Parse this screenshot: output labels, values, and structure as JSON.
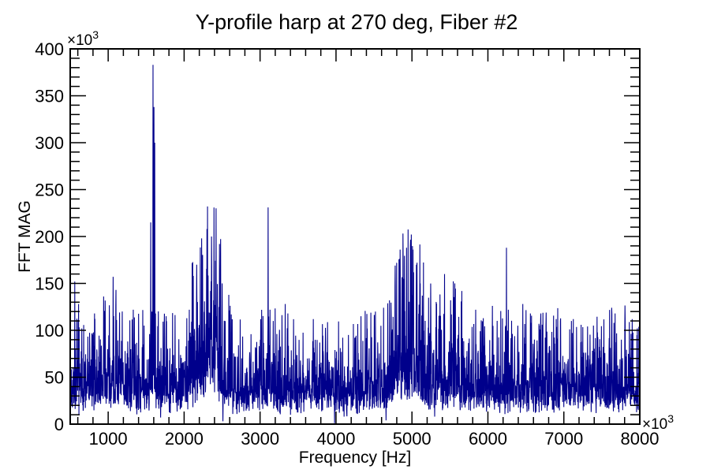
{
  "window": {
    "background_color": "#ffffff",
    "foreground_color": "#000000"
  },
  "chart_data": {
    "type": "line",
    "title": "Y-profile harp at 270 deg, Fiber #2",
    "xlabel": "Frequency [Hz]",
    "ylabel": "FFT MAG",
    "x_axis_multiplier": {
      "base": "×10",
      "exp": "3"
    },
    "y_axis_multiplier": {
      "base": "×10",
      "exp": "3"
    },
    "xlim": [
      500,
      8000
    ],
    "ylim": [
      0,
      400
    ],
    "x_major_ticks": [
      1000,
      2000,
      3000,
      4000,
      5000,
      6000,
      7000,
      8000
    ],
    "x_minor_step": 200,
    "y_major_ticks": [
      0,
      50,
      100,
      150,
      200,
      250,
      300,
      350,
      400
    ],
    "y_minor_step": 10,
    "grid": false,
    "legend": null,
    "line_color": "#00008b",
    "frame_color": "#000000",
    "noise": {
      "seed": 7,
      "points": 3000,
      "floor": 16,
      "base_envelope": 42,
      "shape_a": 0.22,
      "shape_b": 0.62,
      "r_cap": 3.6,
      "clamp_max": 232
    },
    "humps": [
      {
        "center": 2330,
        "sigma": 170,
        "amplitude": 60
      },
      {
        "center": 4950,
        "sigma": 190,
        "amplitude": 38
      },
      {
        "center": 5500,
        "sigma": 120,
        "amplitude": 16
      },
      {
        "center": 1050,
        "sigma": 160,
        "amplitude": 8
      },
      {
        "center": 7850,
        "sigma": 150,
        "amplitude": 6
      },
      {
        "center": 2640,
        "sigma": 90,
        "amplitude": -12
      },
      {
        "center": 4150,
        "sigma": 130,
        "amplitude": -8
      },
      {
        "center": 4680,
        "sigma": 60,
        "amplitude": -12
      }
    ],
    "peaks": [
      [
        560,
        152
      ],
      [
        610,
        128
      ],
      [
        820,
        118
      ],
      [
        940,
        136
      ],
      [
        1065,
        157
      ],
      [
        1100,
        126
      ],
      [
        1330,
        122
      ],
      [
        1545,
        96
      ],
      [
        1560,
        215
      ],
      [
        1576,
        120
      ],
      [
        1590,
        383
      ],
      [
        1603,
        338
      ],
      [
        1612,
        300
      ],
      [
        1622,
        118
      ],
      [
        2120,
        158
      ],
      [
        2165,
        170
      ],
      [
        2230,
        198
      ],
      [
        2300,
        208
      ],
      [
        2360,
        200
      ],
      [
        2420,
        230
      ],
      [
        2465,
        192
      ],
      [
        2500,
        150
      ],
      [
        3105,
        231
      ],
      [
        3130,
        122
      ],
      [
        3330,
        128
      ],
      [
        3365,
        118
      ],
      [
        3700,
        112
      ],
      [
        4330,
        115
      ],
      [
        4520,
        120
      ],
      [
        4800,
        172
      ],
      [
        4845,
        186
      ],
      [
        4885,
        176
      ],
      [
        4930,
        188
      ],
      [
        4980,
        190
      ],
      [
        5015,
        186
      ],
      [
        5060,
        170
      ],
      [
        5110,
        150
      ],
      [
        5430,
        160
      ],
      [
        5510,
        132
      ],
      [
        5565,
        150
      ],
      [
        5840,
        122
      ],
      [
        6060,
        126
      ],
      [
        6245,
        188
      ],
      [
        6460,
        128
      ],
      [
        6560,
        118
      ],
      [
        6900,
        112
      ],
      [
        7100,
        110
      ],
      [
        7390,
        105
      ],
      [
        7660,
        108
      ],
      [
        7900,
        112
      ]
    ],
    "dips": [
      [
        1690,
        7
      ],
      [
        2510,
        3
      ],
      [
        3980,
        1
      ],
      [
        4660,
        4
      ],
      [
        5300,
        8
      ]
    ]
  }
}
